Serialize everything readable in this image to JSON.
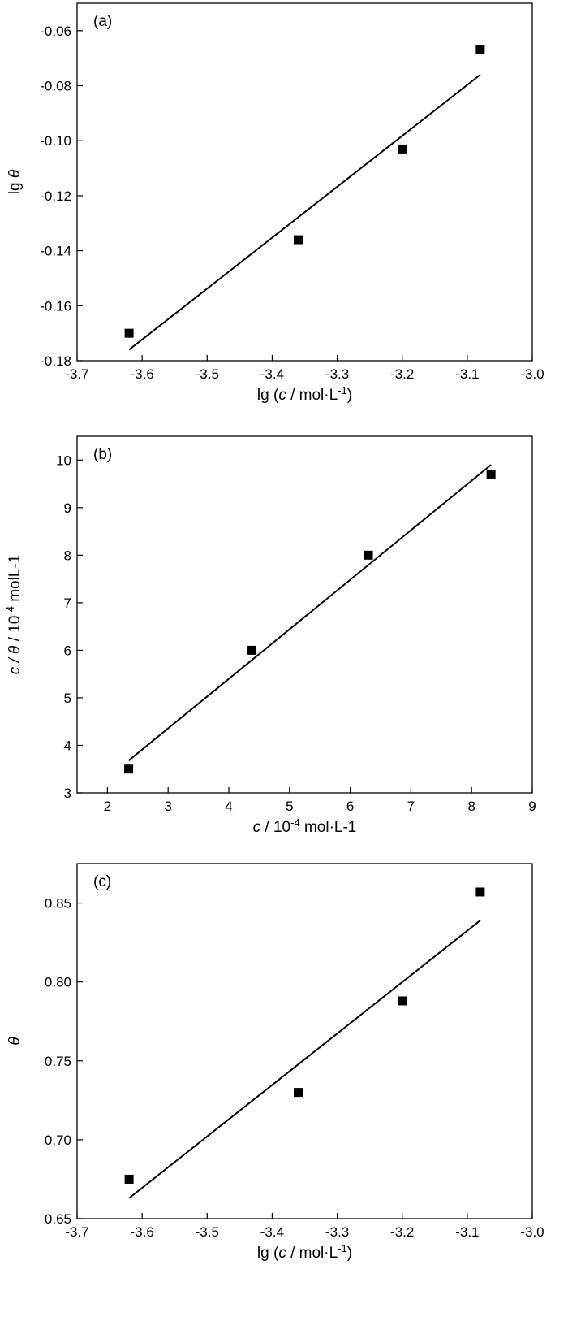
{
  "chart_data": [
    {
      "type": "scatter",
      "panel_label": "(a)",
      "xlabel": {
        "pre": "lg (",
        "it": "c",
        "mid": " / mol·L",
        "sup": "-1",
        "post": ")"
      },
      "ylabel": {
        "pre": "lg ",
        "it": "θ",
        "mid": "",
        "sup": "",
        "post": ""
      },
      "xlim": [
        -3.7,
        -3.0
      ],
      "ylim": [
        -0.18,
        -0.05
      ],
      "x_ticks": [
        "-3.7",
        "-3.6",
        "-3.5",
        "-3.4",
        "-3.3",
        "-3.2",
        "-3.1",
        "-3.0"
      ],
      "y_ticks": [
        "-0.18",
        "-0.16",
        "-0.14",
        "-0.12",
        "-0.10",
        "-0.08",
        "-0.06"
      ],
      "points": [
        {
          "x": -3.62,
          "y": -0.17
        },
        {
          "x": -3.36,
          "y": -0.136
        },
        {
          "x": -3.2,
          "y": -0.103
        },
        {
          "x": -3.08,
          "y": -0.067
        }
      ],
      "fit_line": [
        [
          -3.62,
          -0.176
        ],
        [
          -3.08,
          -0.076
        ]
      ],
      "grid": false,
      "legend": "none"
    },
    {
      "type": "scatter",
      "panel_label": "(b)",
      "xlabel": {
        "pre": "",
        "it": "c",
        "mid": " / 10",
        "sup": "-4",
        "post": " mol·L-1"
      },
      "ylabel": {
        "pre": "",
        "it": "c / θ",
        "mid": " / 10",
        "sup": "-4",
        "post": " molL-1"
      },
      "xlim": [
        1.5,
        9
      ],
      "ylim": [
        3,
        10.5
      ],
      "x_ticks": [
        "2",
        "3",
        "4",
        "5",
        "6",
        "7",
        "8",
        "9"
      ],
      "y_ticks": [
        "3",
        "4",
        "5",
        "6",
        "7",
        "8",
        "9",
        "10"
      ],
      "points": [
        {
          "x": 2.35,
          "y": 3.5
        },
        {
          "x": 4.38,
          "y": 6.0
        },
        {
          "x": 6.3,
          "y": 8.0
        },
        {
          "x": 8.32,
          "y": 9.7
        }
      ],
      "fit_line": [
        [
          2.35,
          3.68
        ],
        [
          8.32,
          9.9
        ]
      ],
      "grid": false,
      "legend": "none"
    },
    {
      "type": "scatter",
      "panel_label": "(c)",
      "xlabel": {
        "pre": "lg (",
        "it": "c",
        "mid": " / mol·L",
        "sup": "-1",
        "post": ")"
      },
      "ylabel": {
        "pre": "",
        "it": "θ",
        "mid": "",
        "sup": "",
        "post": ""
      },
      "xlim": [
        -3.7,
        -3.0
      ],
      "ylim": [
        0.65,
        0.875
      ],
      "x_ticks": [
        "-3.7",
        "-3.6",
        "-3.5",
        "-3.4",
        "-3.3",
        "-3.2",
        "-3.1",
        "-3.0"
      ],
      "y_ticks": [
        "0.65",
        "0.70",
        "0.75",
        "0.80",
        "0.85"
      ],
      "points": [
        {
          "x": -3.62,
          "y": 0.675
        },
        {
          "x": -3.36,
          "y": 0.73
        },
        {
          "x": -3.2,
          "y": 0.788
        },
        {
          "x": -3.08,
          "y": 0.857
        }
      ],
      "fit_line": [
        [
          -3.62,
          0.663
        ],
        [
          -3.08,
          0.839
        ]
      ],
      "grid": false,
      "legend": "none"
    }
  ]
}
